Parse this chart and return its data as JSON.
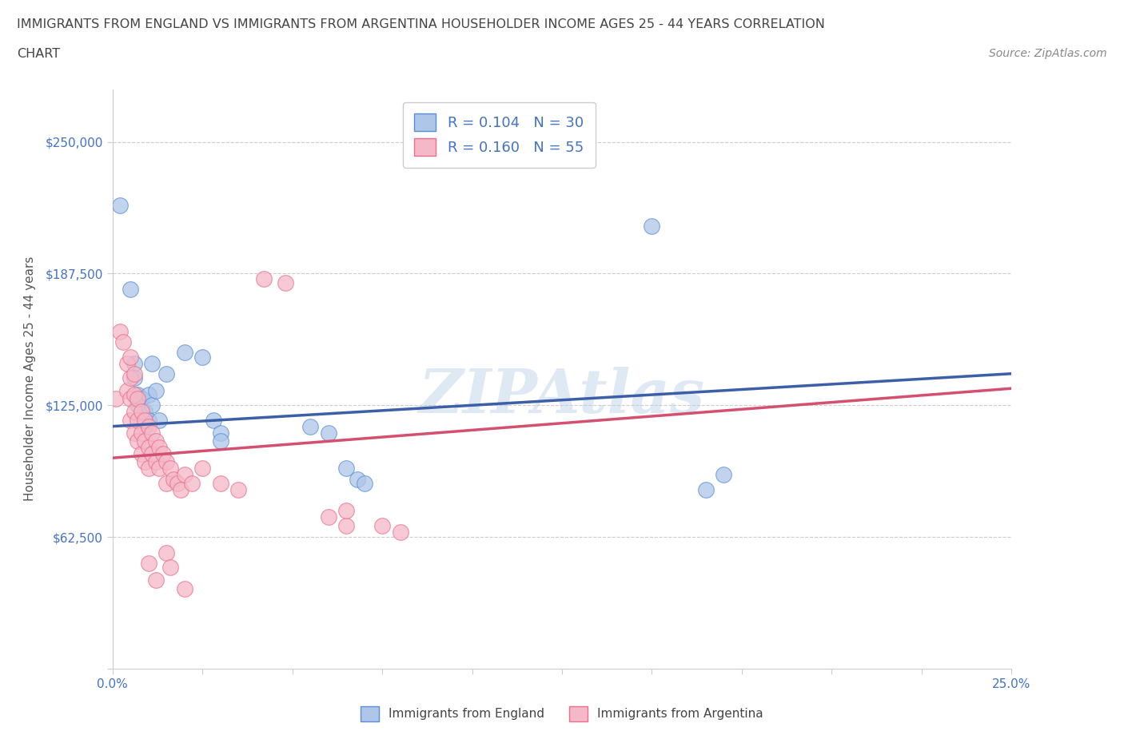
{
  "title_line1": "IMMIGRANTS FROM ENGLAND VS IMMIGRANTS FROM ARGENTINA HOUSEHOLDER INCOME AGES 25 - 44 YEARS CORRELATION",
  "title_line2": "CHART",
  "source": "Source: ZipAtlas.com",
  "ylabel": "Householder Income Ages 25 - 44 years",
  "xlim": [
    0.0,
    0.25
  ],
  "ylim": [
    0,
    275000
  ],
  "yticks": [
    0,
    62500,
    125000,
    187500,
    250000
  ],
  "ytick_labels": [
    "",
    "$62,500",
    "$125,000",
    "$187,500",
    "$250,000"
  ],
  "xticks": [
    0.0,
    0.025,
    0.05,
    0.075,
    0.1,
    0.125,
    0.15,
    0.175,
    0.2,
    0.225,
    0.25
  ],
  "xtick_labels": [
    "0.0%",
    "",
    "",
    "",
    "",
    "",
    "",
    "",
    "",
    "",
    "25.0%"
  ],
  "england_R": 0.104,
  "england_N": 30,
  "argentina_R": 0.16,
  "argentina_N": 55,
  "england_color": "#aec6e8",
  "argentina_color": "#f5b8c8",
  "england_edge_color": "#5b8dd9",
  "argentina_edge_color": "#e8708a",
  "england_line_color": "#3d5fa8",
  "argentina_line_color": "#d45070",
  "england_scatter": [
    [
      0.002,
      220000
    ],
    [
      0.005,
      180000
    ],
    [
      0.006,
      145000
    ],
    [
      0.006,
      138000
    ],
    [
      0.007,
      130000
    ],
    [
      0.007,
      125000
    ],
    [
      0.008,
      128000
    ],
    [
      0.008,
      118000
    ],
    [
      0.009,
      122000
    ],
    [
      0.009,
      115000
    ],
    [
      0.01,
      130000
    ],
    [
      0.01,
      118000
    ],
    [
      0.011,
      145000
    ],
    [
      0.011,
      125000
    ],
    [
      0.012,
      132000
    ],
    [
      0.013,
      118000
    ],
    [
      0.015,
      140000
    ],
    [
      0.02,
      150000
    ],
    [
      0.025,
      148000
    ],
    [
      0.028,
      118000
    ],
    [
      0.03,
      112000
    ],
    [
      0.03,
      108000
    ],
    [
      0.055,
      115000
    ],
    [
      0.06,
      112000
    ],
    [
      0.065,
      95000
    ],
    [
      0.068,
      90000
    ],
    [
      0.07,
      88000
    ],
    [
      0.15,
      210000
    ],
    [
      0.165,
      85000
    ],
    [
      0.17,
      92000
    ]
  ],
  "argentina_scatter": [
    [
      0.001,
      128000
    ],
    [
      0.002,
      160000
    ],
    [
      0.003,
      155000
    ],
    [
      0.004,
      145000
    ],
    [
      0.004,
      132000
    ],
    [
      0.005,
      148000
    ],
    [
      0.005,
      138000
    ],
    [
      0.005,
      128000
    ],
    [
      0.005,
      118000
    ],
    [
      0.006,
      140000
    ],
    [
      0.006,
      130000
    ],
    [
      0.006,
      122000
    ],
    [
      0.006,
      112000
    ],
    [
      0.007,
      128000
    ],
    [
      0.007,
      118000
    ],
    [
      0.007,
      108000
    ],
    [
      0.008,
      122000
    ],
    [
      0.008,
      112000
    ],
    [
      0.008,
      102000
    ],
    [
      0.009,
      118000
    ],
    [
      0.009,
      108000
    ],
    [
      0.009,
      98000
    ],
    [
      0.01,
      115000
    ],
    [
      0.01,
      105000
    ],
    [
      0.01,
      95000
    ],
    [
      0.011,
      112000
    ],
    [
      0.011,
      102000
    ],
    [
      0.012,
      108000
    ],
    [
      0.012,
      98000
    ],
    [
      0.013,
      105000
    ],
    [
      0.013,
      95000
    ],
    [
      0.014,
      102000
    ],
    [
      0.015,
      98000
    ],
    [
      0.015,
      88000
    ],
    [
      0.016,
      95000
    ],
    [
      0.017,
      90000
    ],
    [
      0.018,
      88000
    ],
    [
      0.019,
      85000
    ],
    [
      0.02,
      92000
    ],
    [
      0.022,
      88000
    ],
    [
      0.025,
      95000
    ],
    [
      0.03,
      88000
    ],
    [
      0.035,
      85000
    ],
    [
      0.042,
      185000
    ],
    [
      0.048,
      183000
    ],
    [
      0.06,
      72000
    ],
    [
      0.065,
      68000
    ],
    [
      0.075,
      68000
    ],
    [
      0.08,
      65000
    ],
    [
      0.065,
      75000
    ],
    [
      0.01,
      50000
    ],
    [
      0.012,
      42000
    ],
    [
      0.015,
      55000
    ],
    [
      0.016,
      48000
    ],
    [
      0.02,
      38000
    ]
  ],
  "watermark": "ZIPAtlas",
  "background_color": "#ffffff",
  "grid_color": "#cccccc",
  "title_color": "#444444",
  "axis_label_color": "#555555",
  "tick_color": "#4472c4"
}
